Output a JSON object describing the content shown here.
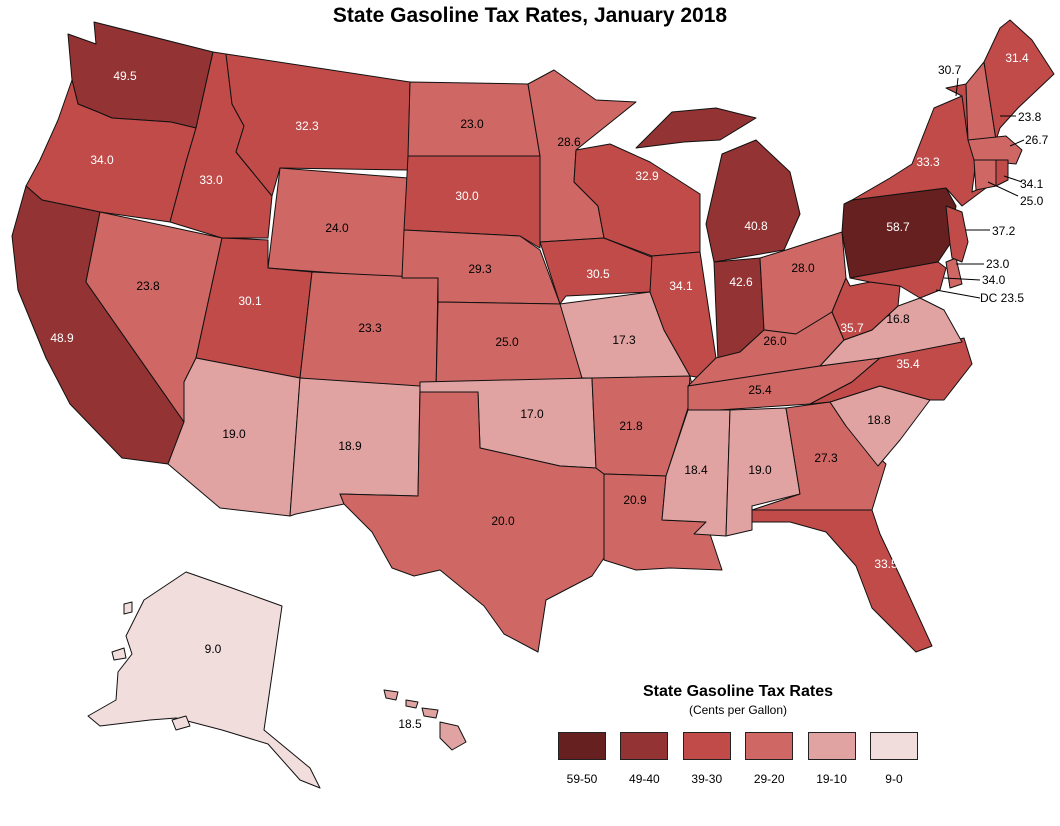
{
  "title": "State Gasoline Tax Rates, January 2018",
  "legend": {
    "title": "State Gasoline Tax Rates",
    "subtitle": "(Cents per Gallon)",
    "items": [
      {
        "label": "59-50",
        "color": "#66201f"
      },
      {
        "label": "49-40",
        "color": "#933333"
      },
      {
        "label": "39-30",
        "color": "#c14b49"
      },
      {
        "label": "29-20",
        "color": "#cf6865"
      },
      {
        "label": "19-10",
        "color": "#e0a3a2"
      },
      {
        "label": "9-0",
        "color": "#f2dddd"
      }
    ]
  },
  "states": {
    "WA": "49.5",
    "OR": "34.0",
    "CA": "48.9",
    "NV": "23.8",
    "ID": "33.0",
    "MT": "32.3",
    "WY": "24.0",
    "UT": "30.1",
    "AZ": "19.0",
    "CO": "23.3",
    "NM": "18.9",
    "ND": "23.0",
    "SD": "30.0",
    "NE": "29.3",
    "KS": "25.0",
    "OK": "17.0",
    "TX": "20.0",
    "MN": "28.6",
    "IA": "30.5",
    "MO": "17.3",
    "AR": "21.8",
    "LA": "20.9",
    "WI": "32.9",
    "IL": "34.1",
    "MI": "40.8",
    "IN": "42.6",
    "OH": "28.0",
    "KY": "26.0",
    "TN": "25.4",
    "MS": "18.4",
    "AL": "19.0",
    "GA": "27.3",
    "FL": "33.5",
    "SC": "18.8",
    "NC": "35.4",
    "VA": "16.8",
    "WV": "35.7",
    "PA": "58.7",
    "NY": "33.3",
    "VT": "30.7",
    "NH": "23.8",
    "ME": "31.4",
    "MA": "26.7",
    "RI": "34.1",
    "CT": "25.0",
    "NJ": "37.2",
    "DE": "23.0",
    "MD": "34.0",
    "DC": "DC 23.5",
    "AK": "9.0",
    "HI": "18.5"
  }
}
